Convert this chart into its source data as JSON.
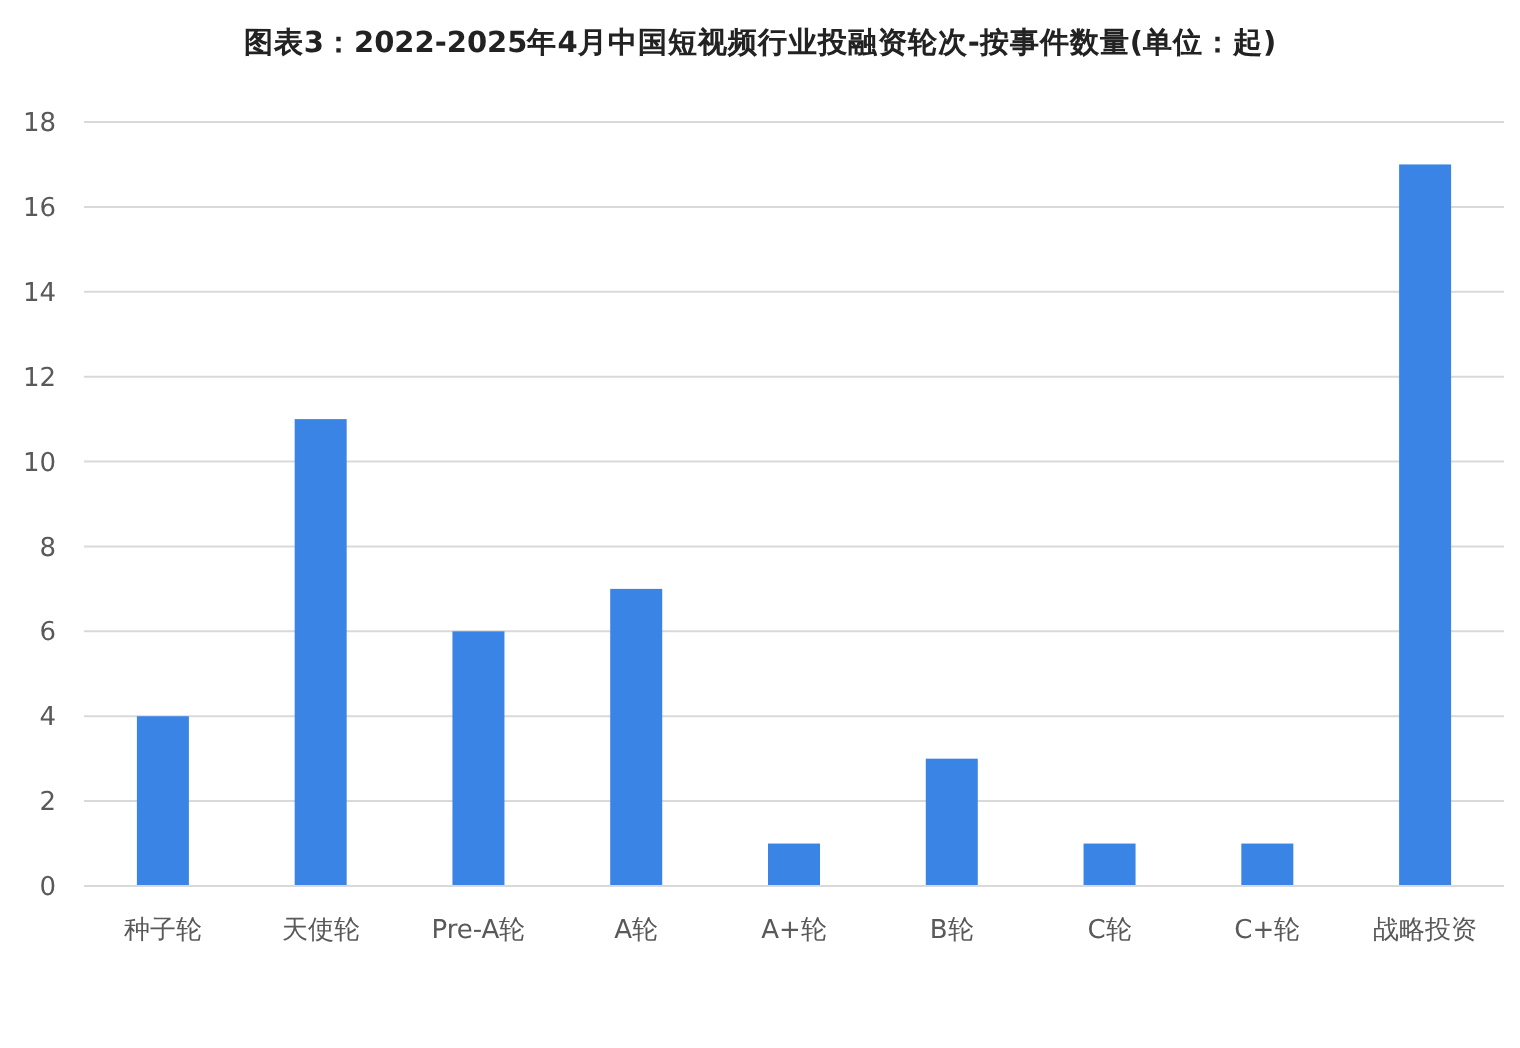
{
  "chart_data": {
    "type": "bar",
    "title": "图表3：2022-2025年4月中国短视频行业投融资轮次-按事件数量(单位：起)",
    "categories": [
      "种子轮",
      "天使轮",
      "Pre-A轮",
      "A轮",
      "A+轮",
      "B轮",
      "C轮",
      "C+轮",
      "战略投资"
    ],
    "values": [
      4,
      11,
      6,
      7,
      1,
      3,
      1,
      1,
      17
    ],
    "color": "#3a84e6",
    "ylim": [
      0,
      18
    ],
    "yticks": [
      0,
      2,
      4,
      6,
      8,
      10,
      12,
      14,
      16,
      18
    ],
    "grid": "y"
  }
}
